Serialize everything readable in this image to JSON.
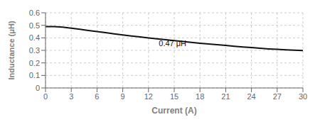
{
  "chart_data": {
    "type": "line",
    "xlabel": "Current (A)",
    "ylabel": "Inductance (μH)",
    "x": [
      0,
      0.5,
      1,
      2,
      3,
      4,
      5,
      6,
      7,
      8,
      9,
      10,
      11,
      12,
      13,
      14,
      15,
      16,
      17,
      18,
      19,
      20,
      21,
      22,
      23,
      24,
      25,
      26,
      27,
      28,
      29,
      30
    ],
    "values": [
      0.49,
      0.49,
      0.489,
      0.485,
      0.477,
      0.468,
      0.459,
      0.45,
      0.441,
      0.432,
      0.423,
      0.415,
      0.407,
      0.399,
      0.392,
      0.385,
      0.378,
      0.371,
      0.364,
      0.357,
      0.351,
      0.345,
      0.339,
      0.333,
      0.327,
      0.322,
      0.317,
      0.312,
      0.308,
      0.304,
      0.301,
      0.299
    ],
    "color": "#111111",
    "xlim": [
      0,
      30
    ],
    "ylim": [
      0,
      0.6
    ],
    "xticks": [
      0,
      3,
      6,
      9,
      12,
      15,
      18,
      21,
      24,
      27,
      30
    ],
    "yticks": [
      0,
      0.1,
      0.2,
      0.3,
      0.4,
      0.5,
      0.6
    ],
    "grid": true,
    "annotations": [
      {
        "text": "0.47 μH",
        "x": 13.2,
        "y": 0.355
      }
    ]
  }
}
